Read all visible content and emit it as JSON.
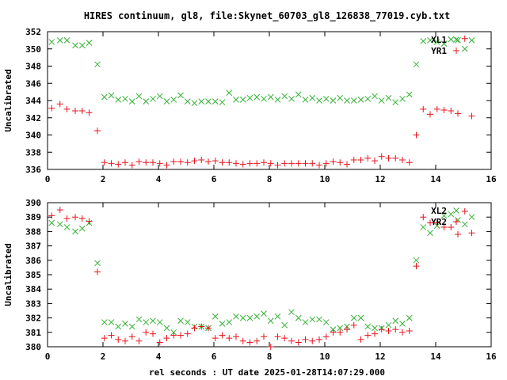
{
  "title": "HIRES continuum, gl8, file:Skynet_60703_gl8_126838_77019.cyb.txt",
  "xlabel": "rel seconds : UT date 2025-01-28T14:07:29.000",
  "colors": {
    "red": "#e8141e",
    "green": "#34b234",
    "frame": "#000000"
  },
  "chart_data": [
    {
      "type": "scatter",
      "ylabel": "Uncalibrated",
      "xlim": [
        0,
        16
      ],
      "ylim": [
        336,
        352
      ],
      "xticks": [
        0,
        2,
        4,
        6,
        8,
        10,
        12,
        14,
        16
      ],
      "yticks": [
        336,
        338,
        340,
        342,
        344,
        346,
        348,
        350,
        352
      ],
      "grid": false,
      "legend": "top-right",
      "series": [
        {
          "name": "XL1",
          "marker": "x",
          "color": "green",
          "x": [
            0.15,
            0.45,
            0.7,
            1.0,
            1.25,
            1.5,
            1.8,
            2.05,
            2.3,
            2.55,
            2.8,
            3.05,
            3.3,
            3.55,
            3.8,
            4.05,
            4.3,
            4.55,
            4.8,
            5.05,
            5.3,
            5.55,
            5.8,
            6.05,
            6.3,
            6.55,
            6.8,
            7.05,
            7.3,
            7.55,
            7.8,
            8.05,
            8.3,
            8.55,
            8.8,
            9.05,
            9.3,
            9.55,
            9.8,
            10.05,
            10.3,
            10.55,
            10.8,
            11.05,
            11.3,
            11.55,
            11.8,
            12.05,
            12.3,
            12.55,
            12.8,
            13.05,
            13.3,
            13.55,
            13.8,
            14.05,
            14.3,
            14.55,
            14.8,
            15.05,
            15.3
          ],
          "y": [
            350.8,
            351.0,
            351.0,
            350.4,
            350.4,
            350.7,
            348.2,
            344.4,
            344.6,
            344.1,
            344.2,
            343.9,
            344.5,
            343.9,
            344.2,
            344.5,
            343.9,
            344.1,
            344.6,
            343.9,
            343.7,
            343.9,
            343.9,
            343.9,
            343.8,
            344.9,
            344.1,
            344.1,
            344.3,
            344.4,
            344.2,
            344.4,
            344.1,
            344.5,
            344.2,
            344.7,
            344.1,
            344.3,
            344.0,
            344.2,
            344.0,
            344.3,
            344.0,
            344.0,
            344.1,
            344.2,
            344.5,
            344.0,
            344.3,
            343.8,
            344.2,
            344.7,
            348.2,
            350.9,
            351.0,
            350.8,
            350.6,
            351.1,
            351.0,
            350.0,
            351.0
          ]
        },
        {
          "name": "YR1",
          "marker": "+",
          "color": "red",
          "x": [
            0.15,
            0.45,
            0.7,
            1.0,
            1.25,
            1.5,
            1.8,
            2.05,
            2.3,
            2.55,
            2.8,
            3.05,
            3.3,
            3.55,
            3.8,
            4.05,
            4.3,
            4.55,
            4.8,
            5.05,
            5.3,
            5.55,
            5.8,
            6.05,
            6.3,
            6.55,
            6.8,
            7.05,
            7.3,
            7.55,
            7.8,
            8.05,
            8.3,
            8.55,
            8.8,
            9.05,
            9.3,
            9.55,
            9.8,
            10.05,
            10.3,
            10.55,
            10.8,
            11.05,
            11.3,
            11.55,
            11.8,
            12.05,
            12.3,
            12.55,
            12.8,
            13.05,
            13.3,
            13.55,
            13.8,
            14.05,
            14.3,
            14.55,
            14.8,
            15.05,
            15.3
          ],
          "y": [
            343.1,
            343.6,
            343.0,
            342.8,
            342.8,
            342.6,
            340.5,
            336.8,
            336.7,
            336.6,
            336.8,
            336.5,
            336.9,
            336.8,
            336.8,
            336.7,
            336.5,
            336.9,
            336.9,
            336.8,
            337.0,
            337.1,
            336.9,
            337.0,
            336.8,
            336.8,
            336.7,
            336.6,
            336.7,
            336.7,
            336.8,
            336.7,
            336.5,
            336.7,
            336.7,
            336.7,
            336.7,
            336.7,
            336.5,
            336.7,
            336.9,
            336.8,
            336.6,
            337.1,
            337.1,
            337.3,
            337.0,
            337.5,
            337.3,
            337.3,
            337.1,
            336.8,
            340.0,
            343.0,
            342.4,
            343.0,
            342.9,
            342.8,
            342.5,
            351.2,
            342.2
          ]
        }
      ]
    },
    {
      "type": "scatter",
      "ylabel": "Uncalibrated",
      "xlim": [
        0,
        16
      ],
      "ylim": [
        380,
        390
      ],
      "xticks": [
        0,
        2,
        4,
        6,
        8,
        10,
        12,
        14,
        16
      ],
      "yticks": [
        380,
        381,
        382,
        383,
        384,
        385,
        386,
        387,
        388,
        389,
        390
      ],
      "grid": false,
      "legend": "top-right",
      "series": [
        {
          "name": "XL2",
          "marker": "x",
          "color": "green",
          "x": [
            0.15,
            0.45,
            0.7,
            1.0,
            1.25,
            1.5,
            1.8,
            2.05,
            2.3,
            2.55,
            2.8,
            3.05,
            3.3,
            3.55,
            3.8,
            4.05,
            4.3,
            4.55,
            4.8,
            5.05,
            5.3,
            5.55,
            5.8,
            6.05,
            6.3,
            6.55,
            6.8,
            7.05,
            7.3,
            7.55,
            7.8,
            8.05,
            8.3,
            8.55,
            8.8,
            9.05,
            9.3,
            9.55,
            9.8,
            10.05,
            10.3,
            10.55,
            10.8,
            11.05,
            11.3,
            11.55,
            11.8,
            12.05,
            12.3,
            12.55,
            12.8,
            13.05,
            13.3,
            13.55,
            13.8,
            14.05,
            14.3,
            14.55,
            14.8,
            15.05,
            15.3
          ],
          "y": [
            388.6,
            388.5,
            388.3,
            388.0,
            388.2,
            388.6,
            385.8,
            381.7,
            381.7,
            381.4,
            381.6,
            381.4,
            381.9,
            381.7,
            381.8,
            381.7,
            381.3,
            381.0,
            381.8,
            381.7,
            381.4,
            381.4,
            381.3,
            382.1,
            381.6,
            381.7,
            382.1,
            382.0,
            382.0,
            382.1,
            382.3,
            381.8,
            382.1,
            381.5,
            382.4,
            382.0,
            381.7,
            381.9,
            381.9,
            381.7,
            381.2,
            381.3,
            381.4,
            382.0,
            382.0,
            381.4,
            381.3,
            381.3,
            381.5,
            381.8,
            381.6,
            382.0,
            386.0,
            388.3,
            387.9,
            388.4,
            389.1,
            389.2,
            388.8,
            388.5,
            389.0
          ]
        },
        {
          "name": "YR2",
          "marker": "+",
          "color": "red",
          "x": [
            0.15,
            0.45,
            0.7,
            1.0,
            1.25,
            1.5,
            1.8,
            2.05,
            2.3,
            2.55,
            2.8,
            3.05,
            3.3,
            3.55,
            3.8,
            4.05,
            4.3,
            4.55,
            4.8,
            5.05,
            5.3,
            5.55,
            5.8,
            6.05,
            6.3,
            6.55,
            6.8,
            7.05,
            7.3,
            7.55,
            7.8,
            8.05,
            8.3,
            8.55,
            8.8,
            9.05,
            9.3,
            9.55,
            9.8,
            10.05,
            10.3,
            10.55,
            10.8,
            11.05,
            11.3,
            11.55,
            11.8,
            12.05,
            12.3,
            12.55,
            12.8,
            13.05,
            13.3,
            13.55,
            13.8,
            14.05,
            14.3,
            14.55,
            14.8,
            15.05,
            15.3
          ],
          "y": [
            389.1,
            389.5,
            388.9,
            389.0,
            388.9,
            388.7,
            385.2,
            380.6,
            380.8,
            380.5,
            380.4,
            380.7,
            380.4,
            381.0,
            380.9,
            380.3,
            380.6,
            380.8,
            380.8,
            380.9,
            381.3,
            381.4,
            381.3,
            380.6,
            380.8,
            380.6,
            380.7,
            380.4,
            380.3,
            380.4,
            380.7,
            380.0,
            380.7,
            380.6,
            380.4,
            380.3,
            380.5,
            380.4,
            380.5,
            380.7,
            381.0,
            381.0,
            381.2,
            381.5,
            380.5,
            380.8,
            380.9,
            381.2,
            381.1,
            381.2,
            381.0,
            381.1,
            385.6,
            389.0,
            388.6,
            388.6,
            388.3,
            388.3,
            387.8,
            389.4,
            387.9
          ]
        }
      ]
    }
  ]
}
